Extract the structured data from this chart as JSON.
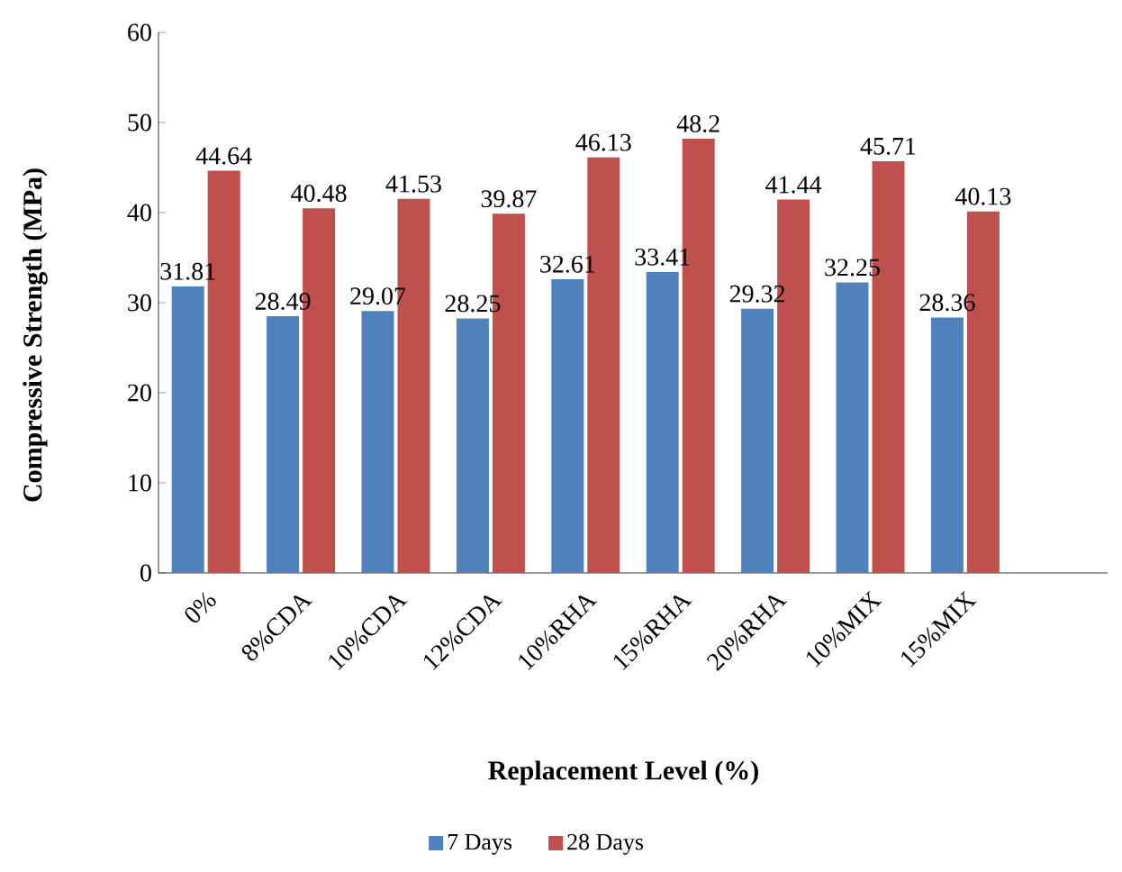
{
  "chart_data": {
    "type": "bar",
    "xlabel": "Replacement Level (%)",
    "ylabel": "Compressive Strength (MPa)",
    "categories": [
      "0%",
      "8%CDA",
      "10%CDA",
      "12%CDA",
      "10%RHA",
      "15%RHA",
      "20%RHA",
      "10%MIX",
      "15%MIX",
      null
    ],
    "series": [
      {
        "name": "7 Days",
        "color": "#4f81bd",
        "values": [
          31.81,
          28.49,
          29.07,
          28.25,
          32.61,
          33.41,
          29.32,
          32.25,
          28.36,
          null
        ]
      },
      {
        "name": "28 Days",
        "color": "#c0504d",
        "values": [
          44.64,
          40.48,
          41.53,
          39.87,
          46.13,
          48.2,
          41.44,
          45.71,
          40.13,
          null
        ]
      }
    ],
    "ylim": [
      0,
      60
    ],
    "yticks": [
      0,
      10,
      20,
      30,
      40,
      50,
      60
    ],
    "data_labels": true,
    "legend": "bottom",
    "grid": false
  }
}
